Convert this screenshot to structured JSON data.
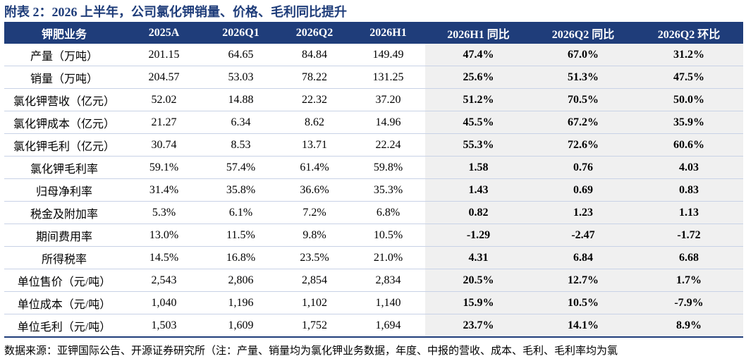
{
  "title": "附表 2：2026 上半年，公司氯化钾销量、价格、毛利同比提升",
  "headers": [
    "钾肥业务",
    "2025A",
    "2026Q1",
    "2026Q2",
    "2026H1",
    "2026H1 同比",
    "2026Q2 同比",
    "2026Q2 环比"
  ],
  "rows": [
    [
      "产量（万吨）",
      "201.15",
      "64.65",
      "84.84",
      "149.49",
      "47.4%",
      "67.0%",
      "31.2%"
    ],
    [
      "销量（万吨）",
      "204.57",
      "53.03",
      "78.22",
      "131.25",
      "25.6%",
      "51.3%",
      "47.5%"
    ],
    [
      "氯化钾营收（亿元）",
      "52.02",
      "14.88",
      "22.32",
      "37.20",
      "51.2%",
      "70.5%",
      "50.0%"
    ],
    [
      "氯化钾成本（亿元）",
      "21.27",
      "6.34",
      "8.62",
      "14.96",
      "45.5%",
      "67.2%",
      "35.9%"
    ],
    [
      "氯化钾毛利（亿元）",
      "30.74",
      "8.53",
      "13.71",
      "22.24",
      "55.3%",
      "72.6%",
      "60.6%"
    ],
    [
      "氯化钾毛利率",
      "59.1%",
      "57.4%",
      "61.4%",
      "59.8%",
      "1.58",
      "0.76",
      "4.03"
    ],
    [
      "归母净利率",
      "31.4%",
      "35.8%",
      "36.6%",
      "35.3%",
      "1.43",
      "0.69",
      "0.83"
    ],
    [
      "税金及附加率",
      "5.3%",
      "6.1%",
      "7.2%",
      "6.8%",
      "0.82",
      "1.23",
      "1.13"
    ],
    [
      "期间费用率",
      "13.0%",
      "11.5%",
      "9.8%",
      "10.5%",
      "-1.29",
      "-2.47",
      "-1.72"
    ],
    [
      "所得税率",
      "14.5%",
      "16.8%",
      "23.5%",
      "21.0%",
      "4.31",
      "6.84",
      "6.68"
    ],
    [
      "单位售价（元/吨）",
      "2,543",
      "2,806",
      "2,854",
      "2,834",
      "20.5%",
      "12.7%",
      "1.7%"
    ],
    [
      "单位成本（元/吨）",
      "1,040",
      "1,196",
      "1,102",
      "1,140",
      "15.9%",
      "10.5%",
      "-7.9%"
    ],
    [
      "单位毛利（元/吨）",
      "1,503",
      "1,609",
      "1,752",
      "1,694",
      "23.7%",
      "14.1%",
      "8.9%"
    ]
  ],
  "source": "数据来源：亚钾国际公告、开源证券研究所（注：产量、销量均为氯化钾业务数据，年度、中报的营收、成本、毛利、毛利率均为氯"
}
